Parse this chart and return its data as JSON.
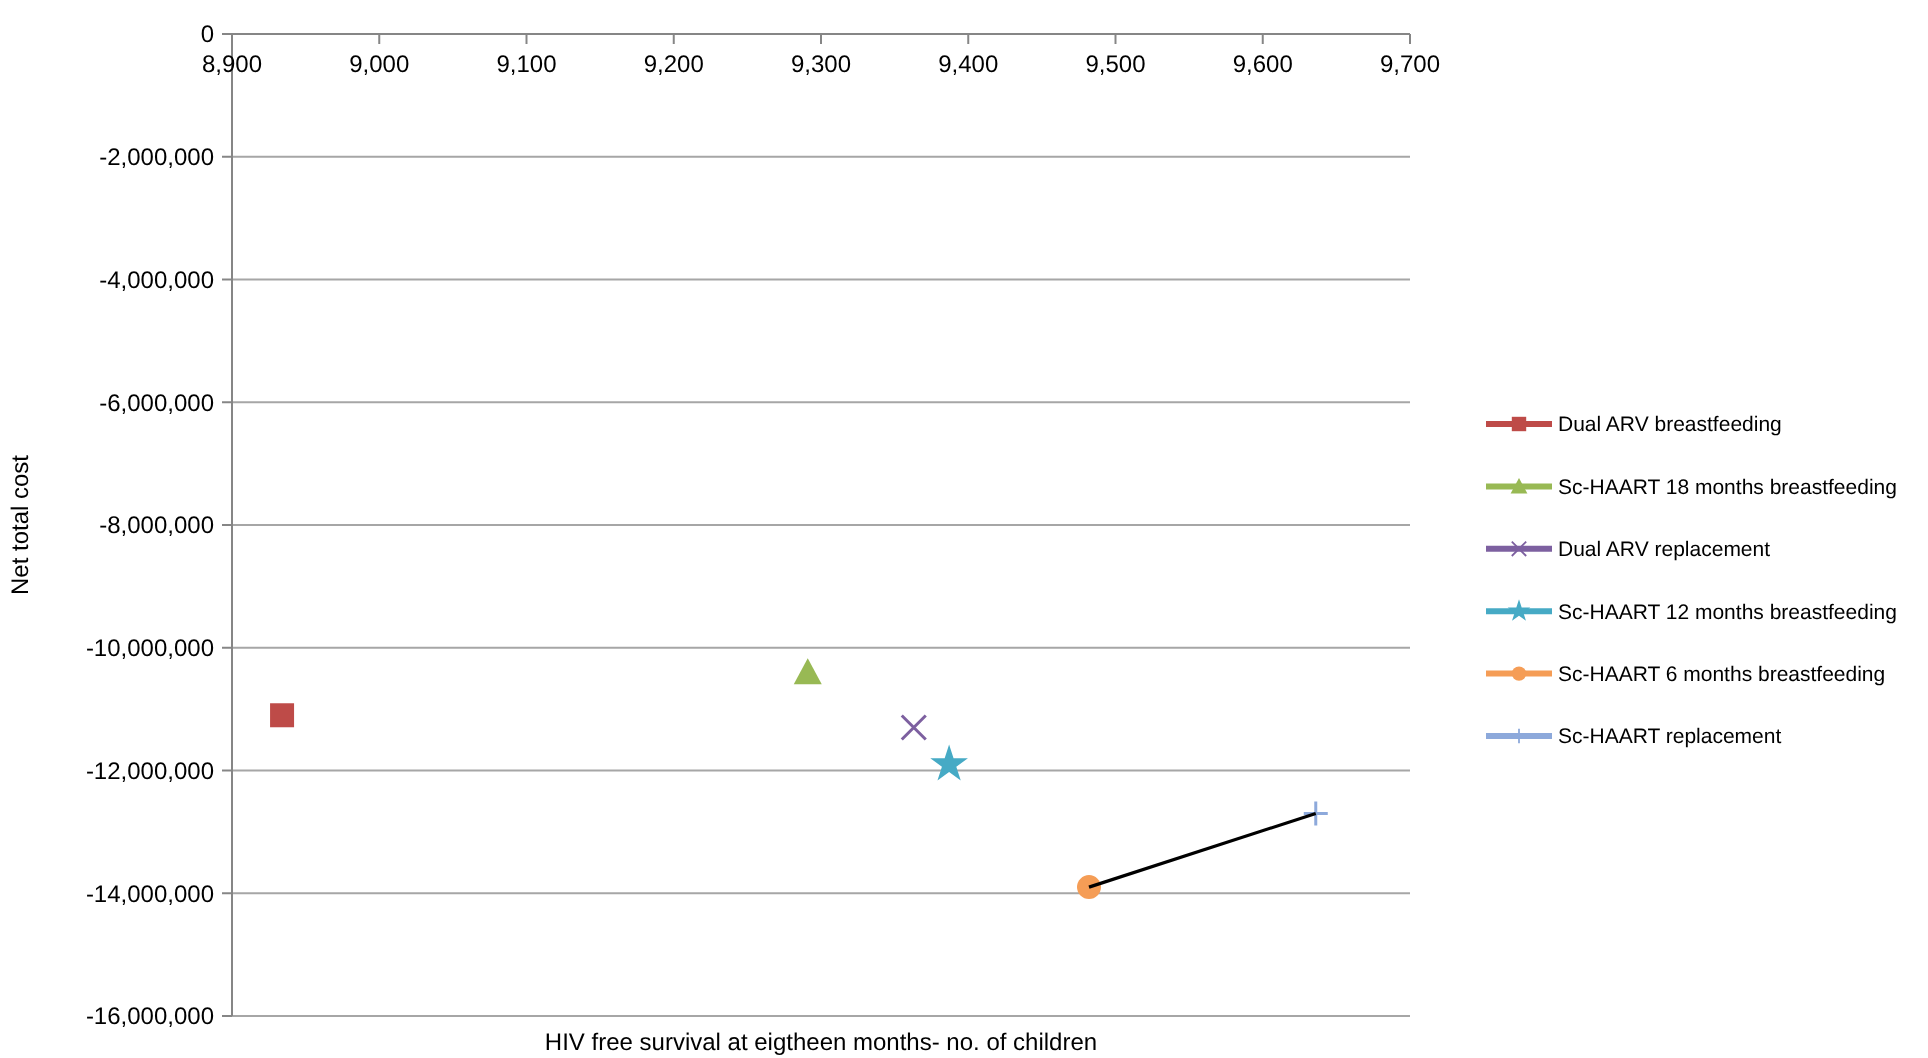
{
  "chart_data": {
    "type": "scatter",
    "xlabel": "HIV free survival at eigtheen months- no. of children",
    "ylabel": "Net total cost",
    "xlim": [
      8900,
      9700
    ],
    "xticks": [
      {
        "value": 8900,
        "label": "8,900"
      },
      {
        "value": 9000,
        "label": "9,000"
      },
      {
        "value": 9100,
        "label": "9,100"
      },
      {
        "value": 9200,
        "label": "9,200"
      },
      {
        "value": 9300,
        "label": "9,300"
      },
      {
        "value": 9400,
        "label": "9,400"
      },
      {
        "value": 9500,
        "label": "9,500"
      },
      {
        "value": 9600,
        "label": "9,600"
      },
      {
        "value": 9700,
        "label": "9,700"
      }
    ],
    "ylim": [
      -16000000,
      0
    ],
    "yticks": [
      {
        "value": -16000000,
        "label": "-16,000,000"
      },
      {
        "value": -14000000,
        "label": "-14,000,000"
      },
      {
        "value": -12000000,
        "label": "-12,000,000"
      },
      {
        "value": -10000000,
        "label": "-10,000,000"
      },
      {
        "value": -8000000,
        "label": "-8,000,000"
      },
      {
        "value": -6000000,
        "label": "-6,000,000"
      },
      {
        "value": -4000000,
        "label": "-4,000,000"
      },
      {
        "value": -2000000,
        "label": "-2,000,000"
      },
      {
        "value": 0,
        "label": "0"
      }
    ],
    "grid": "y",
    "legend": "right",
    "series": [
      {
        "name": "Dual ARV breastfeeding",
        "color": "#be4b48",
        "marker": "square",
        "x": [
          8934
        ],
        "values": [
          -11100000
        ]
      },
      {
        "name": "Sc-HAART 18 months breastfeeding",
        "color": "#98b954",
        "marker": "triangle",
        "x": [
          9291
        ],
        "values": [
          -10400000
        ]
      },
      {
        "name": "Dual ARV replacement",
        "color": "#7d60a0",
        "marker": "x",
        "x": [
          9363
        ],
        "values": [
          -11300000
        ]
      },
      {
        "name": "Sc-HAART 12 months breastfeeding",
        "color": "#46aac5",
        "marker": "star",
        "x": [
          9387
        ],
        "values": [
          -11900000
        ]
      },
      {
        "name": "Sc-HAART 6 months breastfeeding",
        "color": "#f59d56",
        "marker": "circle",
        "x": [
          9482
        ],
        "values": [
          -13900000
        ]
      },
      {
        "name": "Sc-HAART replacement",
        "color": "#8da9db",
        "marker": "cross",
        "x": [
          9636
        ],
        "values": [
          -12700000
        ]
      },
      {
        "type": "line",
        "color": "#000000",
        "marker": "none",
        "line_style": "solid",
        "x": [
          9482,
          9636
        ],
        "values": [
          -13900000,
          -12700000
        ]
      }
    ]
  }
}
